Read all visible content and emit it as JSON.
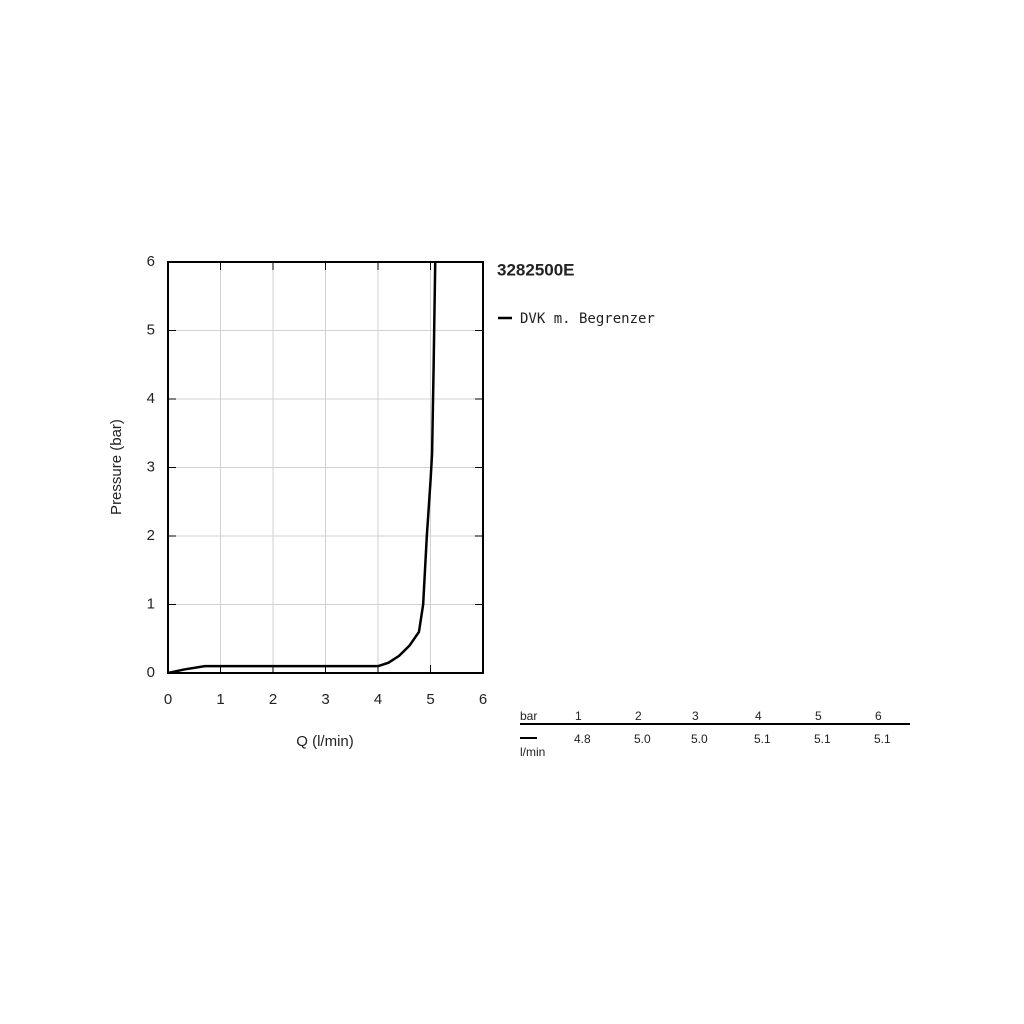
{
  "chart_data": {
    "type": "line",
    "title": "3282500E",
    "x_label": "Q (l/min)",
    "y_label": "Pressure (bar)",
    "x": [
      0,
      0.3,
      0.7,
      1,
      2,
      3,
      4,
      4.2,
      4.4,
      4.6,
      4.78,
      4.86,
      4.93,
      5.0,
      5.03,
      5.06,
      5.09
    ],
    "series": [
      {
        "name": "DVK m. Begrenzer",
        "color": "#000000",
        "values": [
          0,
          0.05,
          0.1,
          0.1,
          0.1,
          0.1,
          0.1,
          0.15,
          0.25,
          0.4,
          0.6,
          1,
          2,
          2.8,
          3.2,
          4.5,
          6
        ]
      }
    ],
    "xlim": [
      0,
      6
    ],
    "ylim": [
      0,
      6
    ],
    "xticks": [
      0,
      1,
      2,
      3,
      4,
      5,
      6
    ],
    "yticks": [
      0,
      1,
      2,
      3,
      4,
      5,
      6
    ],
    "grid": true
  },
  "table": {
    "header": [
      "bar",
      "1",
      "2",
      "3",
      "4",
      "5",
      "6"
    ],
    "unit": "l/min",
    "values": [
      "4.8",
      "5.0",
      "5.0",
      "5.1",
      "5.1",
      "5.1"
    ]
  }
}
